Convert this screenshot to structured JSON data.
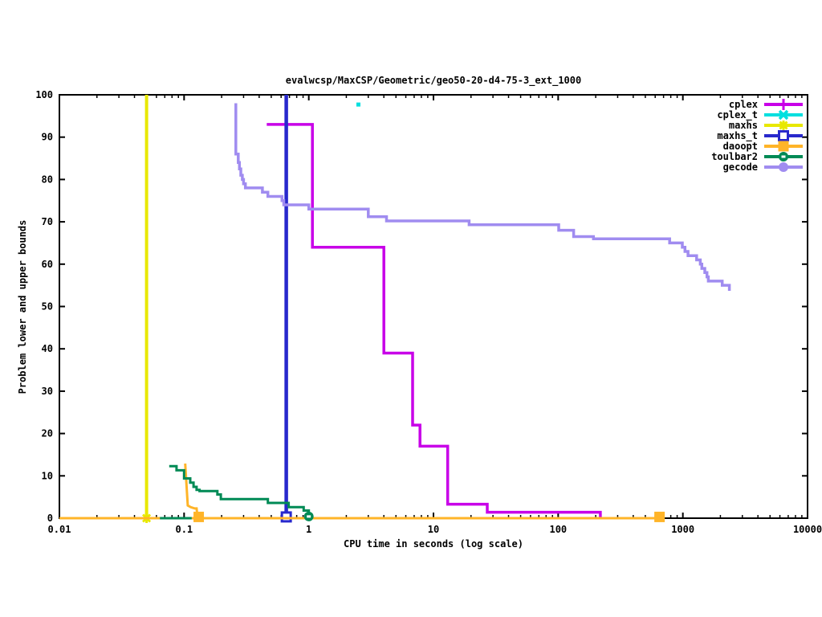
{
  "chart_data": {
    "type": "line",
    "title": "evalwcsp/MaxCSP/Geometric/geo50-20-d4-75-3_ext_1000",
    "xlabel": "CPU time in seconds (log scale)",
    "ylabel": "Problem lower and upper bounds",
    "x_scale": "log",
    "xlim": [
      0.01,
      10000
    ],
    "ylim": [
      0,
      100
    ],
    "x_tick_labels": [
      "0.01",
      "0.1",
      "1",
      "10",
      "100",
      "1000",
      "10000"
    ],
    "y_tick_labels": [
      "0",
      "10",
      "20",
      "30",
      "40",
      "50",
      "60",
      "70",
      "80",
      "90",
      "100"
    ],
    "grid": "off",
    "legend_position": "top-right-inside",
    "axis_color": "#000000",
    "series": [
      {
        "name": "cplex",
        "color": "#c800e8",
        "width": 3.5,
        "marker": "plus",
        "lines": [
          [
            [
              0.46,
              93
            ],
            [
              1.07,
              93
            ],
            [
              1.07,
              64
            ],
            [
              4.0,
              64
            ],
            [
              4.0,
              39
            ],
            [
              6.8,
              39
            ],
            [
              6.8,
              22
            ],
            [
              7.8,
              22
            ],
            [
              7.8,
              17
            ],
            [
              13,
              17
            ],
            [
              13,
              3.3
            ],
            [
              27,
              3.3
            ],
            [
              27,
              1.4
            ],
            [
              218,
              1.4
            ],
            [
              218,
              0
            ]
          ]
        ],
        "points": []
      },
      {
        "name": "cplex_t",
        "color": "#00dfdf",
        "width": 3.5,
        "marker": "cross",
        "point_style": "dot",
        "lines": [],
        "points": [
          [
            2.5,
            97.7
          ]
        ]
      },
      {
        "name": "maxhs",
        "color": "#e8e800",
        "width": 4,
        "marker": "asterisk",
        "lines": [
          [
            [
              0.05,
              100
            ],
            [
              0.05,
              0
            ]
          ]
        ],
        "points": [
          [
            0.05,
            0
          ]
        ]
      },
      {
        "name": "maxhs_t",
        "color": "#2828cc",
        "width": 4.5,
        "marker": "osquare",
        "lines": [
          [
            [
              0.66,
              100
            ],
            [
              0.66,
              0
            ]
          ]
        ],
        "points": [
          [
            0.66,
            0.3
          ]
        ]
      },
      {
        "name": "daoopt",
        "color": "#ffb428",
        "width": 3,
        "marker": "fsquare",
        "lines": [
          [
            [
              0.01,
              0
            ],
            [
              650,
              0
            ]
          ],
          [
            [
              0.102,
              12.9
            ],
            [
              0.107,
              3
            ],
            [
              0.113,
              2.6
            ],
            [
              0.122,
              2.3
            ],
            [
              0.126,
              2.3
            ],
            [
              0.128,
              0.5
            ]
          ]
        ],
        "points": [
          [
            0.131,
            0.3
          ],
          [
            650,
            0.3
          ]
        ]
      },
      {
        "name": "toulbar2",
        "color": "#008a55",
        "width": 3,
        "marker": "ocircle",
        "lines": [
          [
            [
              0.064,
              0
            ],
            [
              0.115,
              0
            ]
          ],
          [
            [
              0.076,
              12.3
            ],
            [
              0.087,
              12.3
            ],
            [
              0.087,
              11.3
            ],
            [
              0.1,
              11.3
            ],
            [
              0.1,
              9.4
            ],
            [
              0.112,
              9.4
            ],
            [
              0.112,
              8.4
            ],
            [
              0.119,
              8.4
            ],
            [
              0.119,
              7.4
            ],
            [
              0.126,
              7.4
            ],
            [
              0.126,
              6.7
            ],
            [
              0.133,
              6.7
            ],
            [
              0.133,
              6.4
            ],
            [
              0.185,
              6.4
            ],
            [
              0.185,
              5.6
            ],
            [
              0.197,
              5.6
            ],
            [
              0.197,
              4.5
            ],
            [
              0.47,
              4.5
            ],
            [
              0.47,
              3.6
            ],
            [
              0.69,
              3.6
            ],
            [
              0.69,
              2.6
            ],
            [
              0.91,
              2.6
            ],
            [
              0.91,
              1.8
            ],
            [
              1.0,
              1.8
            ],
            [
              1.0,
              0.4
            ]
          ]
        ],
        "points": [
          [
            1.0,
            0.4
          ]
        ]
      },
      {
        "name": "gecode",
        "color": "#a08cf0",
        "width": 3.5,
        "marker": "fcircle",
        "lines": [
          [
            [
              0.26,
              98
            ],
            [
              0.26,
              86
            ],
            [
              0.272,
              86
            ],
            [
              0.272,
              84
            ],
            [
              0.278,
              84
            ],
            [
              0.278,
              82.5
            ],
            [
              0.285,
              82.5
            ],
            [
              0.285,
              81
            ],
            [
              0.293,
              81
            ],
            [
              0.293,
              80
            ],
            [
              0.3,
              80
            ],
            [
              0.3,
              79
            ],
            [
              0.31,
              79
            ],
            [
              0.31,
              78
            ],
            [
              0.425,
              78
            ],
            [
              0.425,
              77
            ],
            [
              0.47,
              77
            ],
            [
              0.47,
              76
            ],
            [
              0.61,
              76
            ],
            [
              0.61,
              75
            ],
            [
              0.63,
              75
            ],
            [
              0.63,
              74
            ],
            [
              1.0,
              74
            ],
            [
              1.0,
              73
            ],
            [
              3.0,
              73
            ],
            [
              3.0,
              71.2
            ],
            [
              4.2,
              71.2
            ],
            [
              4.2,
              70.2
            ],
            [
              19.3,
              70.2
            ],
            [
              19.3,
              69.3
            ],
            [
              101,
              69.3
            ],
            [
              101,
              68
            ],
            [
              133,
              68
            ],
            [
              133,
              66.5
            ],
            [
              192,
              66.5
            ],
            [
              192,
              66
            ],
            [
              783,
              66
            ],
            [
              783,
              65
            ],
            [
              990,
              65
            ],
            [
              990,
              64
            ],
            [
              1040,
              64
            ],
            [
              1040,
              63
            ],
            [
              1100,
              63
            ],
            [
              1100,
              62
            ],
            [
              1290,
              62
            ],
            [
              1290,
              61
            ],
            [
              1380,
              61
            ],
            [
              1380,
              60
            ],
            [
              1420,
              60
            ],
            [
              1420,
              59
            ],
            [
              1500,
              59
            ],
            [
              1500,
              58
            ],
            [
              1560,
              58
            ],
            [
              1560,
              57
            ],
            [
              1600,
              57
            ],
            [
              1600,
              56
            ],
            [
              2070,
              56
            ],
            [
              2070,
              55
            ],
            [
              2360,
              55
            ],
            [
              2360,
              53.7
            ]
          ]
        ],
        "points": []
      }
    ],
    "legend": [
      "cplex",
      "cplex_t",
      "maxhs",
      "maxhs_t",
      "daoopt",
      "toulbar2",
      "gecode"
    ]
  }
}
